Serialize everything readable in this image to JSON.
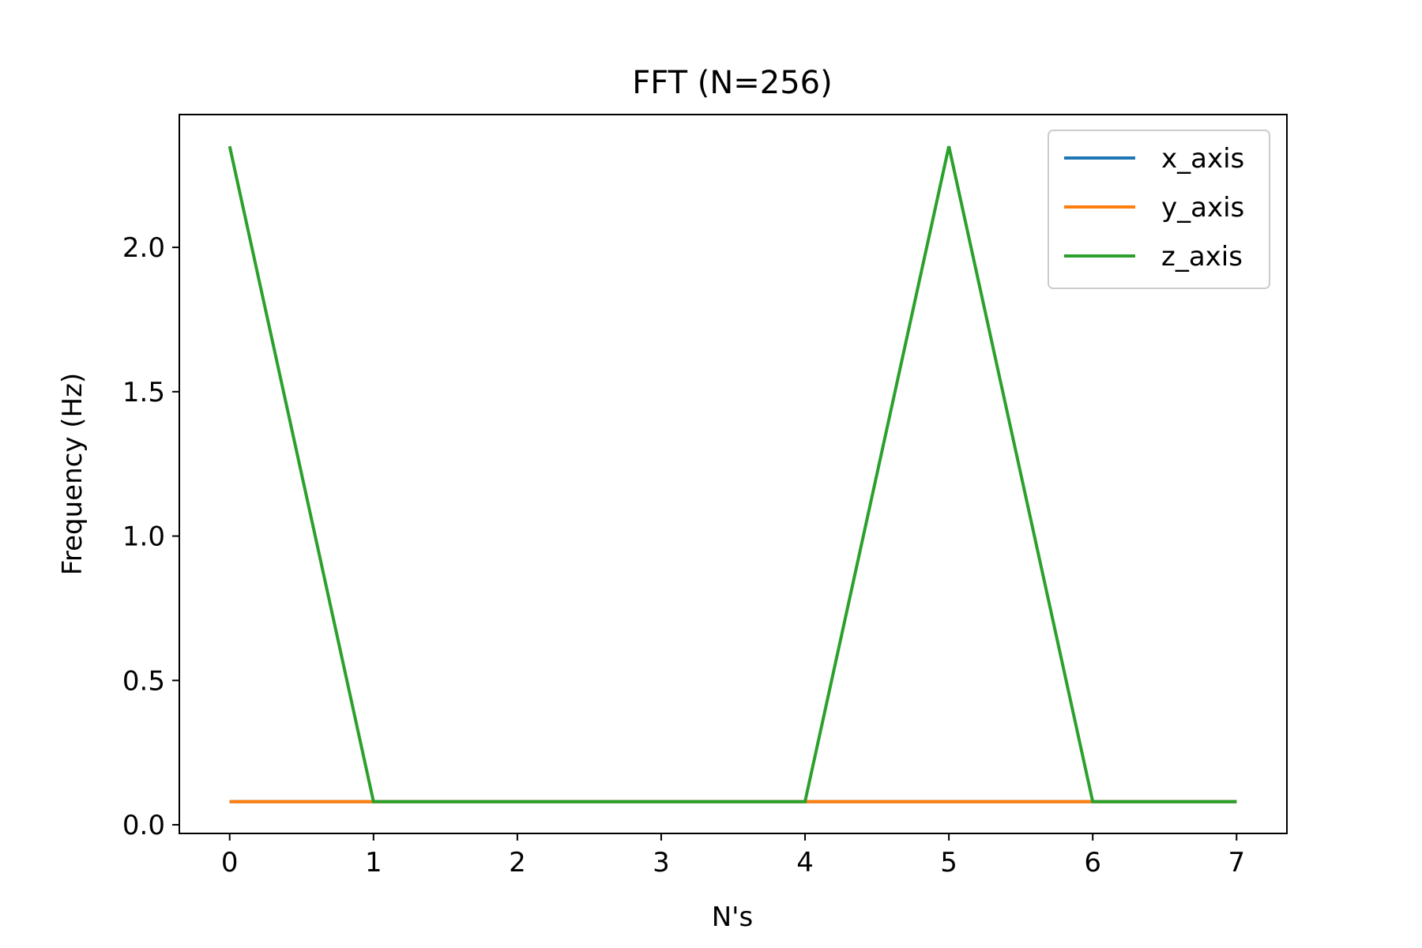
{
  "chart_data": {
    "type": "line",
    "title": "FFT (N=256)",
    "xlabel": "N's",
    "ylabel": "Frequency (Hz)",
    "x": [
      0,
      1,
      2,
      3,
      4,
      5,
      6,
      7
    ],
    "xlim": [
      -0.35,
      7.35
    ],
    "ylim": [
      -0.03,
      2.46
    ],
    "x_ticks": [
      0,
      1,
      2,
      3,
      4,
      5,
      6,
      7
    ],
    "x_tick_labels": [
      "0",
      "1",
      "2",
      "3",
      "4",
      "5",
      "6",
      "7"
    ],
    "y_ticks": [
      0.0,
      0.5,
      1.0,
      1.5,
      2.0
    ],
    "y_tick_labels": [
      "0.0",
      "0.5",
      "1.0",
      "1.5",
      "2.0"
    ],
    "grid": false,
    "legend_position": "top-right",
    "series": [
      {
        "name": "x_axis",
        "color": "#1f77b4",
        "values": [
          0.08,
          0.08,
          0.08,
          0.08,
          0.08,
          0.08,
          0.08,
          0.08
        ]
      },
      {
        "name": "y_axis",
        "color": "#ff7f0e",
        "values": [
          0.08,
          0.08,
          0.08,
          0.08,
          0.08,
          0.08,
          0.08,
          0.08
        ]
      },
      {
        "name": "z_axis",
        "color": "#2ca02c",
        "values": [
          2.35,
          0.08,
          0.08,
          0.08,
          0.08,
          2.35,
          0.08,
          0.08
        ]
      }
    ]
  }
}
